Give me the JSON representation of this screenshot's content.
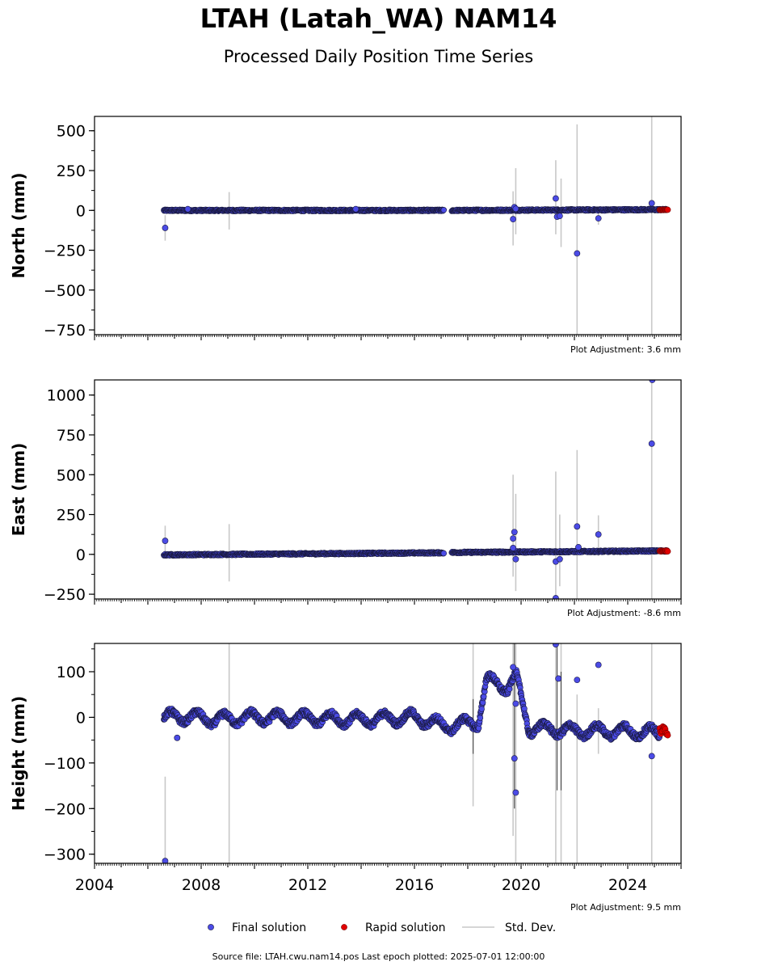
{
  "title": "LTAH (Latah_WA) NAM14",
  "subtitle": "Processed Daily Position Time Series",
  "footer": "Source file: LTAH.cwu.nam14.pos  Last epoch plotted: 2025-07-01 12:00:00",
  "legend": {
    "final": "Final solution",
    "rapid": "Rapid solution",
    "stddev": "Std. Dev."
  },
  "colors": {
    "final": "#4b4be6",
    "rapid": "#e00000",
    "stddev": "#c8c8c8",
    "edge": "#1a1a40"
  },
  "chart_data": [
    {
      "type": "scatter",
      "ylabel": "North (mm)",
      "xlim": [
        2004,
        2026
      ],
      "ylim": [
        -780,
        590
      ],
      "yticks": [
        500,
        250,
        0,
        -250,
        -500,
        -750
      ],
      "ytick_labels": [
        "500",
        "250",
        "0",
        "−250",
        "−500",
        "−750"
      ],
      "adjustment": "Plot Adjustment: 3.6 mm",
      "trend": [
        {
          "x": [
            2006.6,
            2017.1
          ],
          "y": [
            0,
            0
          ]
        },
        {
          "x": [
            2017.4,
            2025.45
          ],
          "y": [
            0,
            5
          ]
        }
      ],
      "rapid_range": [
        2025.2,
        2025.5
      ],
      "rapid_y": [
        2,
        5
      ],
      "outliers": [
        {
          "x": 2006.65,
          "y": -110
        },
        {
          "x": 2007.5,
          "y": 8
        },
        {
          "x": 2013.8,
          "y": 8
        },
        {
          "x": 2019.7,
          "y": -55
        },
        {
          "x": 2019.75,
          "y": 20
        },
        {
          "x": 2019.8,
          "y": 10
        },
        {
          "x": 2021.3,
          "y": 75
        },
        {
          "x": 2021.35,
          "y": -40
        },
        {
          "x": 2021.45,
          "y": -35
        },
        {
          "x": 2022.1,
          "y": -270
        },
        {
          "x": 2022.9,
          "y": -50
        },
        {
          "x": 2024.9,
          "y": 45
        }
      ],
      "stddev_bars": [
        {
          "x": 2006.65,
          "y1": -190,
          "y2": -30
        },
        {
          "x": 2009.05,
          "y1": -120,
          "y2": 115
        },
        {
          "x": 2019.7,
          "y1": -220,
          "y2": 120
        },
        {
          "x": 2019.8,
          "y1": -150,
          "y2": 265
        },
        {
          "x": 2021.3,
          "y1": -150,
          "y2": 315
        },
        {
          "x": 2021.5,
          "y1": -230,
          "y2": 200
        },
        {
          "x": 2022.1,
          "y1": -780,
          "y2": 540
        },
        {
          "x": 2022.9,
          "y1": -90,
          "y2": 10
        },
        {
          "x": 2024.9,
          "y1": -780,
          "y2": 590
        }
      ]
    },
    {
      "type": "scatter",
      "ylabel": "East (mm)",
      "xlim": [
        2004,
        2026
      ],
      "ylim": [
        -280,
        1095
      ],
      "yticks": [
        1000,
        750,
        500,
        250,
        0,
        -250
      ],
      "ytick_labels": [
        "1000",
        "750",
        "500",
        "250",
        "0",
        "−250"
      ],
      "adjustment": "Plot Adjustment: -8.6 mm",
      "trend": [
        {
          "x": [
            2006.6,
            2017.1
          ],
          "y": [
            -3,
            10
          ]
        },
        {
          "x": [
            2017.4,
            2025.45
          ],
          "y": [
            12,
            22
          ]
        }
      ],
      "rapid_range": [
        2025.2,
        2025.5
      ],
      "rapid_y": [
        18,
        24
      ],
      "outliers": [
        {
          "x": 2006.65,
          "y": 85
        },
        {
          "x": 2019.7,
          "y": 100
        },
        {
          "x": 2019.75,
          "y": 140
        },
        {
          "x": 2019.8,
          "y": -30
        },
        {
          "x": 2019.7,
          "y": 40
        },
        {
          "x": 2021.3,
          "y": -45
        },
        {
          "x": 2021.3,
          "y": -275
        },
        {
          "x": 2021.45,
          "y": -30
        },
        {
          "x": 2022.1,
          "y": 175
        },
        {
          "x": 2022.15,
          "y": 45
        },
        {
          "x": 2022.9,
          "y": 125
        },
        {
          "x": 2024.9,
          "y": 695
        },
        {
          "x": 2024.92,
          "y": 1095
        }
      ],
      "stddev_bars": [
        {
          "x": 2006.65,
          "y1": -10,
          "y2": 180
        },
        {
          "x": 2009.05,
          "y1": -170,
          "y2": 190
        },
        {
          "x": 2019.7,
          "y1": -140,
          "y2": 500
        },
        {
          "x": 2019.8,
          "y1": -230,
          "y2": 380
        },
        {
          "x": 2021.3,
          "y1": -280,
          "y2": 520
        },
        {
          "x": 2021.45,
          "y1": -200,
          "y2": 250
        },
        {
          "x": 2022.1,
          "y1": -280,
          "y2": 655
        },
        {
          "x": 2022.9,
          "y1": -10,
          "y2": 245
        },
        {
          "x": 2024.9,
          "y1": -280,
          "y2": 1095
        }
      ]
    },
    {
      "type": "scatter",
      "ylabel": "Height (mm)",
      "xlim": [
        2004,
        2026
      ],
      "ylim": [
        -320,
        162
      ],
      "yticks": [
        100,
        0,
        -100,
        -200,
        -300
      ],
      "ytick_labels": [
        "100",
        "0",
        "−100",
        "−200",
        "−300"
      ],
      "xticks": [
        2004,
        2008,
        2012,
        2016,
        2020,
        2024
      ],
      "xtick_labels": [
        "2004",
        "2008",
        "2012",
        "2016",
        "2020",
        "2024"
      ],
      "adjustment": "Plot Adjustment: 9.5 mm",
      "trend": [
        {
          "x": [
            2006.6,
            2007.5,
            2008.5,
            2010,
            2012,
            2014,
            2016,
            2017.2,
            2017.8,
            2018.4,
            2018.7,
            2019.1,
            2019.5,
            2019.8,
            2020.3,
            2021,
            2022,
            2023,
            2024,
            2025.2
          ],
          "y": [
            0,
            2,
            -5,
            0,
            -2,
            -5,
            0,
            -20,
            -15,
            -10,
            80,
            75,
            65,
            90,
            -25,
            -25,
            -30,
            -30,
            -30,
            -35
          ]
        }
      ],
      "amplitude": 12,
      "rapid_range": [
        2025.2,
        2025.5
      ],
      "rapid_y": [
        -40,
        -20
      ],
      "outliers": [
        {
          "x": 2006.65,
          "y": -315
        },
        {
          "x": 2007.1,
          "y": -45
        },
        {
          "x": 2019.8,
          "y": -165
        },
        {
          "x": 2019.75,
          "y": -90
        },
        {
          "x": 2019.8,
          "y": 30
        },
        {
          "x": 2019.7,
          "y": 110
        },
        {
          "x": 2021.3,
          "y": 160
        },
        {
          "x": 2021.4,
          "y": 85
        },
        {
          "x": 2022.1,
          "y": 82
        },
        {
          "x": 2022.9,
          "y": 115
        },
        {
          "x": 2024.9,
          "y": -85
        }
      ],
      "stddev_bars": [
        {
          "x": 2006.65,
          "y1": -320,
          "y2": -130
        },
        {
          "x": 2009.05,
          "y1": -320,
          "y2": 162
        },
        {
          "x": 2018.2,
          "y1": -195,
          "y2": 162
        },
        {
          "x": 2019.7,
          "y1": -260,
          "y2": 162
        },
        {
          "x": 2019.8,
          "y1": -320,
          "y2": 162
        },
        {
          "x": 2021.3,
          "y1": -320,
          "y2": 162
        },
        {
          "x": 2021.5,
          "y1": -320,
          "y2": 162
        },
        {
          "x": 2022.1,
          "y1": -320,
          "y2": 50
        },
        {
          "x": 2022.9,
          "y1": -80,
          "y2": 20
        },
        {
          "x": 2024.9,
          "y1": -320,
          "y2": 162
        }
      ]
    }
  ]
}
